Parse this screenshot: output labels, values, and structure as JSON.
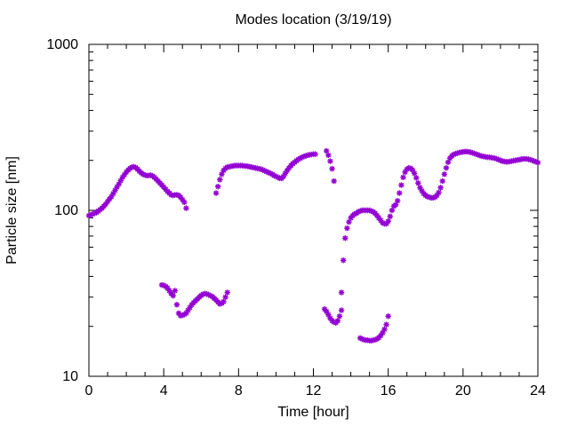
{
  "chart_data": {
    "type": "scatter",
    "title": "Modes location (3/19/19)",
    "xlabel": "Time [hour]",
    "ylabel": "Particle size [nm]",
    "xlim": [
      0,
      24
    ],
    "ylim": [
      10,
      1000
    ],
    "yscale": "log",
    "xticks": [
      0,
      4,
      8,
      12,
      16,
      20,
      24
    ],
    "yticks": [
      10,
      100,
      1000
    ],
    "grid": false,
    "legend": "none",
    "marker_color": "#9400d3",
    "marker_symbol": "asterisk",
    "series": [
      {
        "name": "",
        "points": [
          [
            0.0,
            93
          ],
          [
            0.1,
            94
          ],
          [
            0.2,
            95
          ],
          [
            0.3,
            96
          ],
          [
            0.4,
            97
          ],
          [
            0.5,
            99
          ],
          [
            0.6,
            101
          ],
          [
            0.7,
            103
          ],
          [
            0.8,
            106
          ],
          [
            0.9,
            109
          ],
          [
            1.0,
            113
          ],
          [
            1.1,
            117
          ],
          [
            1.2,
            121
          ],
          [
            1.3,
            126
          ],
          [
            1.4,
            132
          ],
          [
            1.5,
            138
          ],
          [
            1.6,
            144
          ],
          [
            1.7,
            151
          ],
          [
            1.8,
            158
          ],
          [
            1.9,
            164
          ],
          [
            2.0,
            170
          ],
          [
            2.1,
            175
          ],
          [
            2.2,
            179
          ],
          [
            2.3,
            182
          ],
          [
            2.4,
            183
          ],
          [
            2.5,
            181
          ],
          [
            2.6,
            177
          ],
          [
            2.7,
            172
          ],
          [
            2.8,
            168
          ],
          [
            2.9,
            165
          ],
          [
            3.0,
            163
          ],
          [
            3.1,
            162
          ],
          [
            3.2,
            162
          ],
          [
            3.3,
            163
          ],
          [
            3.4,
            161
          ],
          [
            3.5,
            158
          ],
          [
            3.6,
            154
          ],
          [
            3.7,
            150
          ],
          [
            3.8,
            146
          ],
          [
            3.9,
            142
          ],
          [
            4.0,
            138
          ],
          [
            4.1,
            134
          ],
          [
            4.2,
            130
          ],
          [
            4.3,
            127
          ],
          [
            4.4,
            124
          ],
          [
            4.5,
            123
          ],
          [
            4.6,
            124
          ],
          [
            4.7,
            124
          ],
          [
            4.8,
            123
          ],
          [
            4.9,
            120
          ],
          [
            5.0,
            116
          ],
          [
            5.1,
            112
          ],
          [
            5.2,
            103
          ],
          [
            6.8,
            127
          ],
          [
            6.9,
            139
          ],
          [
            7.0,
            153
          ],
          [
            7.1,
            165
          ],
          [
            7.2,
            174
          ],
          [
            7.3,
            179
          ],
          [
            7.4,
            182
          ],
          [
            7.5,
            183
          ],
          [
            7.6,
            184
          ],
          [
            7.7,
            185
          ],
          [
            7.8,
            186
          ],
          [
            7.9,
            186
          ],
          [
            8.0,
            186
          ],
          [
            8.1,
            186
          ],
          [
            8.2,
            186
          ],
          [
            8.3,
            185
          ],
          [
            8.4,
            185
          ],
          [
            8.5,
            184
          ],
          [
            8.6,
            183
          ],
          [
            8.7,
            182
          ],
          [
            8.8,
            181
          ],
          [
            8.9,
            180
          ],
          [
            9.0,
            179
          ],
          [
            9.1,
            178
          ],
          [
            9.2,
            177
          ],
          [
            9.3,
            175
          ],
          [
            9.4,
            173
          ],
          [
            9.5,
            171
          ],
          [
            9.6,
            169
          ],
          [
            9.7,
            167
          ],
          [
            9.8,
            165
          ],
          [
            9.9,
            162
          ],
          [
            10.0,
            160
          ],
          [
            10.1,
            158
          ],
          [
            10.2,
            156
          ],
          [
            10.3,
            156
          ],
          [
            10.4,
            160
          ],
          [
            10.5,
            167
          ],
          [
            10.6,
            174
          ],
          [
            10.7,
            180
          ],
          [
            10.8,
            186
          ],
          [
            10.9,
            191
          ],
          [
            11.0,
            195
          ],
          [
            11.1,
            199
          ],
          [
            11.2,
            203
          ],
          [
            11.3,
            206
          ],
          [
            11.4,
            209
          ],
          [
            11.5,
            211
          ],
          [
            11.6,
            213
          ],
          [
            11.7,
            215
          ],
          [
            11.8,
            216
          ],
          [
            11.9,
            217
          ],
          [
            12.0,
            218
          ],
          [
            12.1,
            218
          ],
          [
            12.7,
            228
          ],
          [
            12.8,
            215
          ],
          [
            12.9,
            198
          ],
          [
            13.0,
            178
          ],
          [
            13.1,
            150
          ],
          [
            13.5,
            32
          ],
          [
            13.6,
            50
          ],
          [
            13.7,
            68
          ],
          [
            13.8,
            78
          ],
          [
            13.9,
            85
          ],
          [
            14.0,
            90
          ],
          [
            14.1,
            93
          ],
          [
            14.2,
            95
          ],
          [
            14.3,
            96
          ],
          [
            14.4,
            98
          ],
          [
            14.5,
            99
          ],
          [
            14.6,
            100
          ],
          [
            14.7,
            100
          ],
          [
            14.8,
            100
          ],
          [
            14.9,
            100
          ],
          [
            15.0,
            100
          ],
          [
            15.1,
            99
          ],
          [
            15.2,
            98
          ],
          [
            15.3,
            96
          ],
          [
            15.4,
            93
          ],
          [
            15.5,
            90
          ],
          [
            15.6,
            87
          ],
          [
            15.7,
            84
          ],
          [
            15.8,
            83
          ],
          [
            15.9,
            83
          ],
          [
            16.0,
            86
          ],
          [
            16.1,
            92
          ],
          [
            16.2,
            100
          ],
          [
            16.3,
            106
          ],
          [
            16.4,
            108
          ],
          [
            16.5,
            114
          ],
          [
            16.6,
            127
          ],
          [
            16.7,
            142
          ],
          [
            16.8,
            158
          ],
          [
            16.9,
            170
          ],
          [
            17.0,
            177
          ],
          [
            17.1,
            180
          ],
          [
            17.2,
            179
          ],
          [
            17.3,
            175
          ],
          [
            17.4,
            167
          ],
          [
            17.5,
            157
          ],
          [
            17.6,
            146
          ],
          [
            17.7,
            137
          ],
          [
            17.8,
            131
          ],
          [
            17.9,
            126
          ],
          [
            18.0,
            123
          ],
          [
            18.1,
            121
          ],
          [
            18.2,
            120
          ],
          [
            18.3,
            119
          ],
          [
            18.4,
            119
          ],
          [
            18.5,
            120
          ],
          [
            18.6,
            123
          ],
          [
            18.7,
            128
          ],
          [
            18.8,
            137
          ],
          [
            18.9,
            150
          ],
          [
            19.0,
            165
          ],
          [
            19.1,
            180
          ],
          [
            19.2,
            195
          ],
          [
            19.3,
            206
          ],
          [
            19.4,
            213
          ],
          [
            19.5,
            217
          ],
          [
            19.6,
            219
          ],
          [
            19.7,
            221
          ],
          [
            19.8,
            223
          ],
          [
            19.9,
            224
          ],
          [
            20.0,
            225
          ],
          [
            20.1,
            226
          ],
          [
            20.2,
            226
          ],
          [
            20.3,
            225
          ],
          [
            20.4,
            224
          ],
          [
            20.5,
            222
          ],
          [
            20.6,
            220
          ],
          [
            20.7,
            218
          ],
          [
            20.8,
            216
          ],
          [
            20.9,
            214
          ],
          [
            21.0,
            212
          ],
          [
            21.1,
            211
          ],
          [
            21.2,
            210
          ],
          [
            21.3,
            209
          ],
          [
            21.4,
            209
          ],
          [
            21.5,
            208
          ],
          [
            21.6,
            207
          ],
          [
            21.7,
            206
          ],
          [
            21.8,
            204
          ],
          [
            21.9,
            202
          ],
          [
            22.0,
            200
          ],
          [
            22.1,
            198
          ],
          [
            22.2,
            197
          ],
          [
            22.3,
            196
          ],
          [
            22.4,
            196
          ],
          [
            22.5,
            197
          ],
          [
            22.6,
            198
          ],
          [
            22.7,
            199
          ],
          [
            22.8,
            200
          ],
          [
            22.9,
            201
          ],
          [
            23.0,
            202
          ],
          [
            23.1,
            203
          ],
          [
            23.2,
            204
          ],
          [
            23.3,
            204
          ],
          [
            23.4,
            204
          ],
          [
            23.5,
            203
          ],
          [
            23.6,
            202
          ],
          [
            23.7,
            200
          ],
          [
            23.8,
            198
          ],
          [
            23.9,
            196
          ],
          [
            24.0,
            194
          ]
        ]
      },
      {
        "name": "",
        "points": [
          [
            3.9,
            35.5
          ],
          [
            4.0,
            35.3
          ],
          [
            4.1,
            34.8
          ],
          [
            4.2,
            34.0
          ],
          [
            4.3,
            32.8
          ],
          [
            4.4,
            31.5
          ],
          [
            4.5,
            30.6
          ],
          [
            4.6,
            32.8
          ],
          [
            4.7,
            27.0
          ],
          [
            4.8,
            24.0
          ],
          [
            4.9,
            23.2
          ],
          [
            5.0,
            23.3
          ],
          [
            5.1,
            23.6
          ],
          [
            5.2,
            24.0
          ],
          [
            5.3,
            25.0
          ],
          [
            5.4,
            26.0
          ],
          [
            5.5,
            27.0
          ],
          [
            5.6,
            27.8
          ],
          [
            5.7,
            28.5
          ],
          [
            5.8,
            29.2
          ],
          [
            5.9,
            30.0
          ],
          [
            6.0,
            30.7
          ],
          [
            6.1,
            31.2
          ],
          [
            6.2,
            31.5
          ],
          [
            6.3,
            31.3
          ],
          [
            6.4,
            31.0
          ],
          [
            6.5,
            30.6
          ],
          [
            6.6,
            30.2
          ],
          [
            6.7,
            29.5
          ],
          [
            6.8,
            28.8
          ],
          [
            6.9,
            28.0
          ],
          [
            7.0,
            27.3
          ],
          [
            7.1,
            27.5
          ],
          [
            7.2,
            28.2
          ],
          [
            7.3,
            30.0
          ],
          [
            7.4,
            32.0
          ],
          [
            12.6,
            25.4
          ],
          [
            12.7,
            24.6
          ],
          [
            12.8,
            23.5
          ],
          [
            12.9,
            22.4
          ],
          [
            13.0,
            21.6
          ],
          [
            13.1,
            21.2
          ],
          [
            13.2,
            21.0
          ],
          [
            13.3,
            21.6
          ],
          [
            13.4,
            23.0
          ],
          [
            13.5,
            25.0
          ],
          [
            14.5,
            17.0
          ],
          [
            14.6,
            16.8
          ],
          [
            14.7,
            16.6
          ],
          [
            14.8,
            16.5
          ],
          [
            14.9,
            16.5
          ],
          [
            15.0,
            16.4
          ],
          [
            15.1,
            16.4
          ],
          [
            15.2,
            16.5
          ],
          [
            15.3,
            16.6
          ],
          [
            15.4,
            16.8
          ],
          [
            15.5,
            17.1
          ],
          [
            15.6,
            17.6
          ],
          [
            15.7,
            18.3
          ],
          [
            15.8,
            19.2
          ],
          [
            15.9,
            20.5
          ],
          [
            16.0,
            23.0
          ]
        ]
      }
    ]
  }
}
